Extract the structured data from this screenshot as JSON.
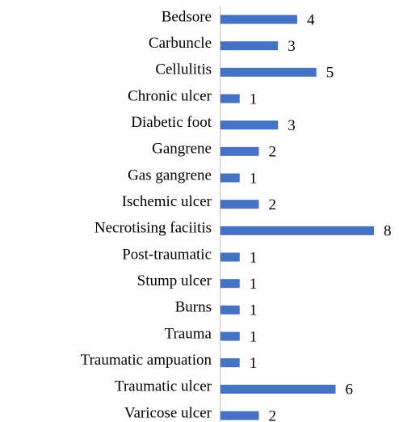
{
  "chart_data": {
    "type": "bar",
    "orientation": "horizontal",
    "categories": [
      "Bedsore",
      "Carbuncle",
      "Cellulitis",
      "Chronic ulcer",
      "Diabetic foot",
      "Gangrene",
      "Gas gangrene",
      "Ischemic ulcer",
      "Necrotising faciitis",
      "Post-traumatic",
      "Stump ulcer",
      "Burns",
      "Trauma",
      "Traumatic ampuation",
      "Traumatic ulcer",
      "Varicose ulcer"
    ],
    "values": [
      4,
      3,
      5,
      1,
      3,
      2,
      1,
      2,
      8,
      1,
      1,
      1,
      1,
      1,
      6,
      2
    ],
    "color": "#4472c4"
  }
}
